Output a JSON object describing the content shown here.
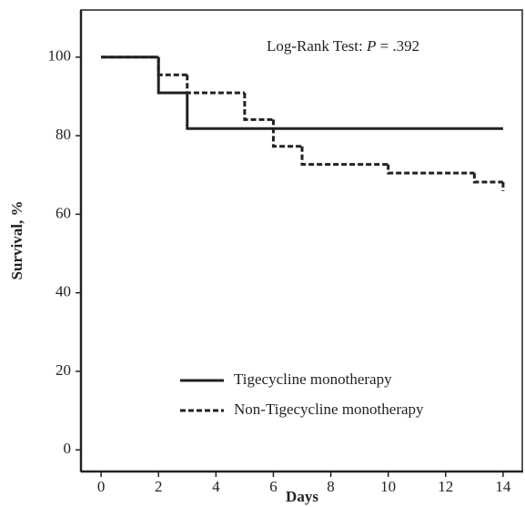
{
  "chart_data": {
    "type": "line",
    "step": "post",
    "xlabel": "Days",
    "ylabel": "Survival, %",
    "annotation": [
      "Log-Rank Test: ",
      "P",
      " = .392"
    ],
    "xlim": [
      -0.7,
      14.7
    ],
    "ylim": [
      -5.5,
      112
    ],
    "xticks": [
      0,
      2,
      4,
      6,
      8,
      10,
      12,
      14
    ],
    "yticks": [
      0,
      20,
      40,
      60,
      80,
      100
    ],
    "legend": "lower left",
    "series": [
      {
        "name": "Tigecycline monotherapy",
        "color": "#222222",
        "dash": "solid",
        "x": [
          0,
          2,
          3,
          14
        ],
        "values": [
          100,
          90.9,
          81.8,
          81.8
        ]
      },
      {
        "name": "Non-Tigecycline monotherapy",
        "color": "#222222",
        "dash": "dashed",
        "x": [
          0,
          2,
          3,
          5,
          6,
          7,
          10,
          13,
          14
        ],
        "values": [
          100,
          95.5,
          90.9,
          84.1,
          77.3,
          72.7,
          70.5,
          68.2,
          65.9
        ]
      }
    ]
  }
}
